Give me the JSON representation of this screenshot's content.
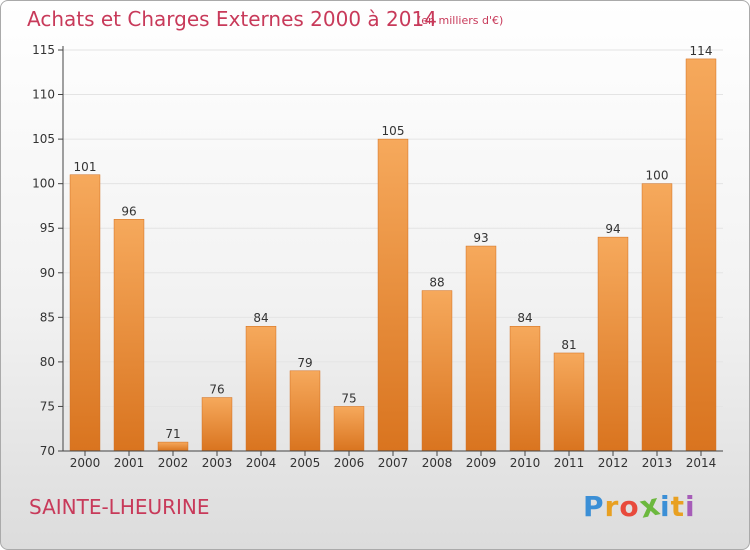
{
  "header": {
    "title": "Achats et Charges Externes 2000 à 2014",
    "subtitle": "(en milliers d'€)"
  },
  "footer": {
    "place": "SAINTE-LHEURINE",
    "logo_letters": [
      "P",
      "r",
      "o",
      "x",
      "i",
      "t",
      "i"
    ],
    "logo_colors": [
      "#3b8fd6",
      "#e8a022",
      "#e84a3c",
      "#6cb83e",
      "#3b8fd6",
      "#e8a022",
      "#a65cb8"
    ]
  },
  "colors": {
    "bar_light": "#f6a95c",
    "bar_dark": "#d9741f",
    "accent": "#c83a5a",
    "axis": "#444444",
    "grid": "#e4e4e4"
  },
  "chart_data": {
    "type": "bar",
    "categories": [
      "2000",
      "2001",
      "2002",
      "2003",
      "2004",
      "2005",
      "2006",
      "2007",
      "2008",
      "2009",
      "2010",
      "2011",
      "2012",
      "2013",
      "2014"
    ],
    "values": [
      101,
      96,
      71,
      76,
      84,
      79,
      75,
      105,
      88,
      93,
      84,
      81,
      94,
      100,
      114
    ],
    "data_labels": [
      "101",
      "96",
      "71",
      "76",
      "84",
      "79",
      "75",
      "105",
      "88",
      "93",
      "84",
      "81",
      "94",
      "100",
      "114"
    ],
    "ylim": [
      70,
      115
    ],
    "y_ticks": [
      70,
      75,
      80,
      85,
      90,
      95,
      100,
      105,
      110,
      115
    ],
    "y_tick_labels": [
      "70",
      "75",
      "80",
      "85",
      "90",
      "95",
      "100",
      "105",
      "110",
      "115"
    ],
    "grid": true,
    "legend": "none"
  }
}
